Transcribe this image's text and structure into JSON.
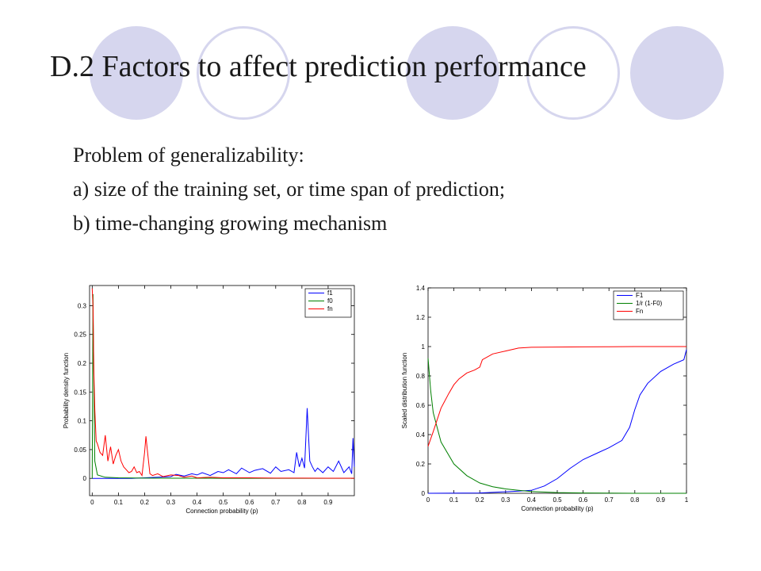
{
  "slide": {
    "title": "D.2 Factors to affect prediction performance",
    "bullets": [
      "Problem of generalizability:",
      "a) size of the training set, or time span of prediction;",
      "b) time-changing growing mechanism"
    ]
  },
  "decoration": {
    "accent_color": "#d6d6ee"
  },
  "chart_data": [
    {
      "type": "line",
      "xlabel": "Connection probability (p)",
      "ylabel": "Probability density function",
      "xlim": [
        -0.01,
        1.0
      ],
      "ylim": [
        -0.03,
        0.335
      ],
      "xticks": [
        "0",
        "0.1",
        "0.2",
        "0.3",
        "0.4",
        "0.5",
        "0.6",
        "0.7",
        "0.8",
        "0.9"
      ],
      "yticks": [
        "0",
        "0.05",
        "0.1",
        "0.15",
        "0.2",
        "0.25",
        "0.3"
      ],
      "legend_position": "top-right",
      "series": [
        {
          "name": "f1",
          "color": "#0000ff",
          "x": [
            0,
            0.05,
            0.1,
            0.15,
            0.2,
            0.25,
            0.3,
            0.32,
            0.35,
            0.38,
            0.4,
            0.42,
            0.45,
            0.48,
            0.5,
            0.52,
            0.55,
            0.57,
            0.6,
            0.62,
            0.65,
            0.68,
            0.7,
            0.72,
            0.75,
            0.77,
            0.78,
            0.79,
            0.8,
            0.81,
            0.82,
            0.83,
            0.84,
            0.85,
            0.86,
            0.88,
            0.9,
            0.92,
            0.94,
            0.96,
            0.98,
            0.99,
            0.995,
            1.0
          ],
          "y": [
            0,
            0,
            0,
            0,
            0.001,
            0.002,
            0.003,
            0.007,
            0.004,
            0.008,
            0.006,
            0.01,
            0.005,
            0.012,
            0.01,
            0.015,
            0.008,
            0.018,
            0.01,
            0.014,
            0.017,
            0.009,
            0.02,
            0.012,
            0.015,
            0.01,
            0.045,
            0.02,
            0.035,
            0.018,
            0.122,
            0.03,
            0.02,
            0.012,
            0.018,
            0.01,
            0.02,
            0.012,
            0.03,
            0.01,
            0.02,
            0.008,
            0.07,
            0.02
          ]
        },
        {
          "name": "f0",
          "color": "#008000",
          "x": [
            0,
            0.003,
            0.006,
            0.01,
            0.02,
            0.05,
            0.1,
            0.2,
            0.3,
            0.5,
            0.7,
            1.0
          ],
          "y": [
            0,
            0.32,
            0.18,
            0.03,
            0.006,
            0.002,
            0.001,
            0.0005,
            0.0003,
            0.0002,
            0.0001,
            0.0001
          ]
        },
        {
          "name": "fn",
          "color": "#ff0000",
          "x": [
            0,
            0.003,
            0.006,
            0.01,
            0.015,
            0.02,
            0.03,
            0.04,
            0.05,
            0.06,
            0.07,
            0.08,
            0.09,
            0.1,
            0.11,
            0.12,
            0.13,
            0.14,
            0.15,
            0.16,
            0.17,
            0.18,
            0.19,
            0.2,
            0.205,
            0.21,
            0.22,
            0.23,
            0.25,
            0.27,
            0.3,
            0.33,
            0.35,
            0.38,
            0.4,
            0.45,
            0.5,
            0.6,
            0.7,
            0.8,
            0.9,
            1.0
          ],
          "y": [
            0.33,
            0.3,
            0.19,
            0.12,
            0.065,
            0.06,
            0.045,
            0.04,
            0.075,
            0.03,
            0.055,
            0.025,
            0.04,
            0.05,
            0.03,
            0.02,
            0.015,
            0.01,
            0.012,
            0.02,
            0.01,
            0.012,
            0.005,
            0.045,
            0.073,
            0.05,
            0.008,
            0.005,
            0.008,
            0.003,
            0.006,
            0.005,
            0.002,
            0.004,
            0.001,
            0.002,
            0.001,
            0.001,
            0.0005,
            0.0005,
            0.0003,
            0.0003
          ]
        }
      ]
    },
    {
      "type": "line",
      "xlabel": "Connection probability (p)",
      "ylabel": "Scaled distribution function",
      "xlim": [
        0,
        1
      ],
      "ylim": [
        0,
        1.4
      ],
      "xticks": [
        "0",
        "0.1",
        "0.2",
        "0.3",
        "0.4",
        "0.5",
        "0.6",
        "0.7",
        "0.8",
        "0.9",
        "1"
      ],
      "yticks": [
        "0",
        "0.2",
        "0.4",
        "0.6",
        "0.8",
        "1",
        "1.2",
        "1.4"
      ],
      "legend_position": "top-right",
      "series": [
        {
          "name": "F1",
          "color": "#0000ff",
          "x": [
            0,
            0.2,
            0.3,
            0.35,
            0.4,
            0.45,
            0.5,
            0.55,
            0.6,
            0.65,
            0.7,
            0.75,
            0.78,
            0.8,
            0.82,
            0.85,
            0.9,
            0.95,
            0.99,
            1.0
          ],
          "y": [
            0,
            0.002,
            0.01,
            0.015,
            0.02,
            0.05,
            0.1,
            0.17,
            0.23,
            0.27,
            0.31,
            0.36,
            0.45,
            0.57,
            0.67,
            0.75,
            0.83,
            0.88,
            0.91,
            0.98
          ]
        },
        {
          "name": "1/r (1-F0)",
          "color": "#008000",
          "x": [
            0,
            0.01,
            0.02,
            0.05,
            0.1,
            0.15,
            0.2,
            0.25,
            0.3,
            0.35,
            0.4,
            0.5,
            0.6,
            0.8,
            1.0
          ],
          "y": [
            0.92,
            0.7,
            0.55,
            0.35,
            0.2,
            0.12,
            0.07,
            0.045,
            0.03,
            0.02,
            0.012,
            0.005,
            0.002,
            0,
            0
          ]
        },
        {
          "name": "Fn",
          "color": "#ff0000",
          "x": [
            0,
            0.02,
            0.05,
            0.08,
            0.1,
            0.12,
            0.15,
            0.18,
            0.2,
            0.21,
            0.25,
            0.3,
            0.35,
            0.4,
            0.5,
            0.6,
            0.7,
            0.8,
            0.9,
            1.0
          ],
          "y": [
            0.32,
            0.42,
            0.58,
            0.68,
            0.74,
            0.78,
            0.82,
            0.84,
            0.86,
            0.91,
            0.95,
            0.97,
            0.99,
            0.995,
            0.997,
            0.998,
            0.999,
            1.0,
            1.0,
            1.0
          ]
        }
      ]
    }
  ]
}
